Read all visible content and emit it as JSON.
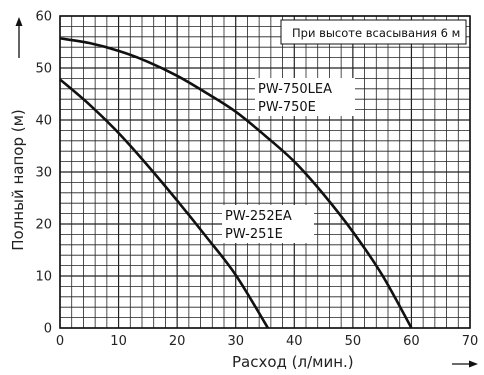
{
  "chart_data": {
    "type": "line",
    "title": "",
    "xlabel": "Расход (л/мин.)",
    "ylabel": "Полный напор (м)",
    "xlim": [
      0,
      70
    ],
    "ylim": [
      0,
      60
    ],
    "x_ticks": [
      "0",
      "10",
      "20",
      "30",
      "40",
      "50",
      "60",
      "70"
    ],
    "y_ticks": [
      "0",
      "10",
      "20",
      "30",
      "40",
      "50",
      "60"
    ],
    "grid": true,
    "annotation": "При высоте всасывания 6 м",
    "series": [
      {
        "label_lines": [
          "PW-750LEA",
          "PW-750E"
        ],
        "x": [
          0,
          5,
          10,
          15,
          20,
          25,
          30,
          35,
          40,
          45,
          50,
          55,
          60
        ],
        "y": [
          55.7,
          54.8,
          53.3,
          51.2,
          48.5,
          45.2,
          41.6,
          37.0,
          32.0,
          25.7,
          18.5,
          10.2,
          0
        ]
      },
      {
        "label_lines": [
          "PW-252EA",
          "PW-251E"
        ],
        "x": [
          0,
          5,
          10,
          15,
          20,
          25,
          30,
          35.5
        ],
        "y": [
          47.8,
          43.0,
          37.5,
          31.2,
          24.5,
          17.5,
          10.2,
          0
        ]
      }
    ]
  }
}
